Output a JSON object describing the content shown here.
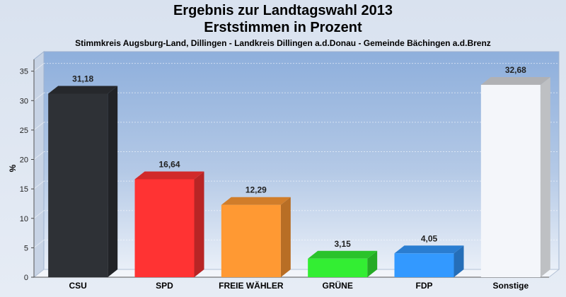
{
  "chart_data": {
    "type": "bar",
    "title": "Ergebnis zur Landtagswahl 2013",
    "subtitle": "Erststimmen in Prozent",
    "caption": "Stimmkreis Augsburg-Land, Dillingen - Landkreis Dillingen a.d.Donau - Gemeinde Bächingen a.d.Brenz",
    "ylabel": "%",
    "xlabel": "",
    "ylim": [
      0,
      37
    ],
    "yticks": [
      0,
      5,
      10,
      15,
      20,
      25,
      30,
      35
    ],
    "grid": true,
    "categories": [
      "CSU",
      "SPD",
      "FREIE WÄHLER",
      "GRÜNE",
      "FDP",
      "Sonstige"
    ],
    "values": [
      31.18,
      16.64,
      12.29,
      3.15,
      4.05,
      32.68
    ],
    "value_labels": [
      "31,18",
      "16,64",
      "12,29",
      "3,15",
      "4,05",
      "32,68"
    ],
    "colors": [
      "#2e3136",
      "#ff3333",
      "#ff9933",
      "#33ee33",
      "#3399ff",
      "#f4f6fa"
    ]
  }
}
